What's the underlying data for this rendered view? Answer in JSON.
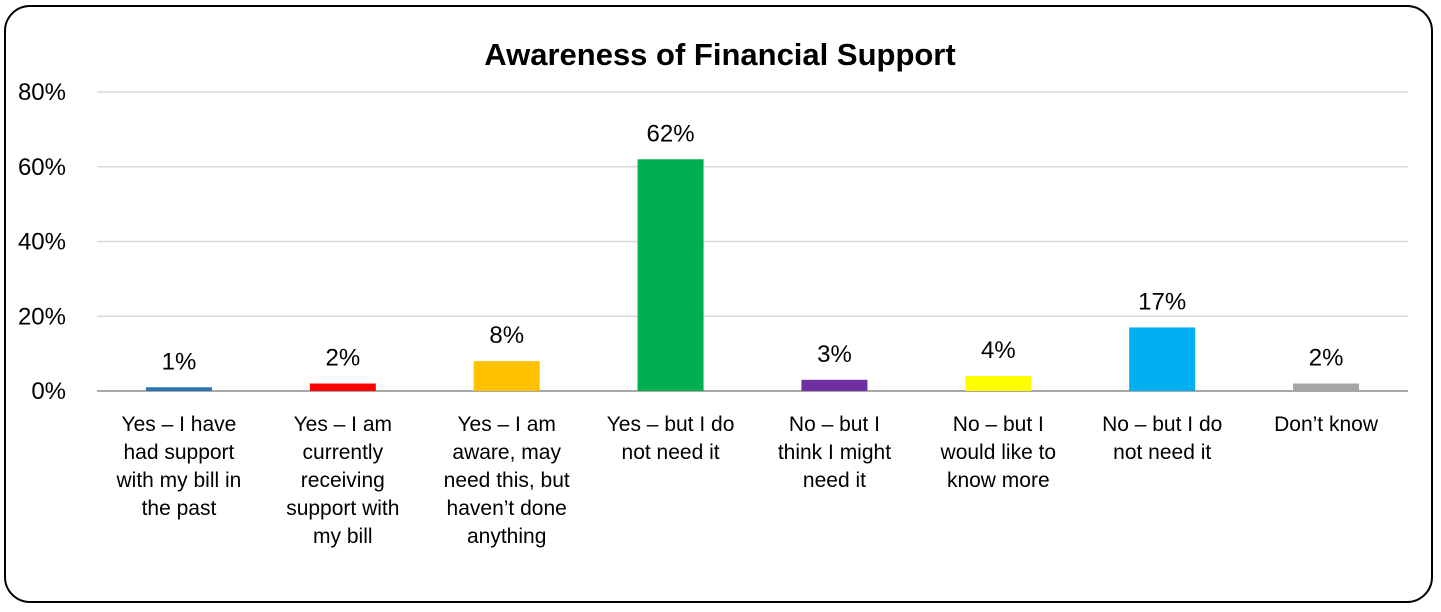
{
  "chart_data": {
    "type": "bar",
    "title": "Awareness of Financial Support",
    "xlabel": "",
    "ylabel": "",
    "ylim": [
      0,
      80
    ],
    "yticks": [
      "0%",
      "20%",
      "40%",
      "60%",
      "80%"
    ],
    "grid": true,
    "legend": "none",
    "categories": [
      "Yes – I have had support with my bill in the past",
      "Yes – I am currently receiving support with my bill",
      "Yes – I am aware, may need this, but haven’t done anything",
      "Yes – but I do not need it",
      "No – but I think I might need it",
      "No – but I would like to know more",
      "No – but I do not need it",
      "Don’t know"
    ],
    "category_lines": [
      [
        "Yes – I have",
        "had support",
        "with my bill in",
        "the past"
      ],
      [
        "Yes – I am",
        "currently",
        "receiving",
        "support with",
        "my bill"
      ],
      [
        "Yes – I am",
        "aware, may",
        "need this, but",
        "haven’t done",
        "anything"
      ],
      [
        "Yes – but I do",
        "not need it"
      ],
      [
        "No – but I",
        "think I might",
        "need it"
      ],
      [
        "No – but I",
        "would like to",
        "know more"
      ],
      [
        "No – but I do",
        "not need it"
      ],
      [
        "Don’t know"
      ]
    ],
    "values": [
      1,
      2,
      8,
      62,
      3,
      4,
      17,
      2
    ],
    "data_labels": [
      "1%",
      "2%",
      "8%",
      "62%",
      "3%",
      "4%",
      "17%",
      "2%"
    ],
    "colors": [
      "#2E75B6",
      "#FF0000",
      "#FFC000",
      "#00B050",
      "#7030A0",
      "#FFFF00",
      "#00B0F0",
      "#A5A5A5"
    ]
  }
}
